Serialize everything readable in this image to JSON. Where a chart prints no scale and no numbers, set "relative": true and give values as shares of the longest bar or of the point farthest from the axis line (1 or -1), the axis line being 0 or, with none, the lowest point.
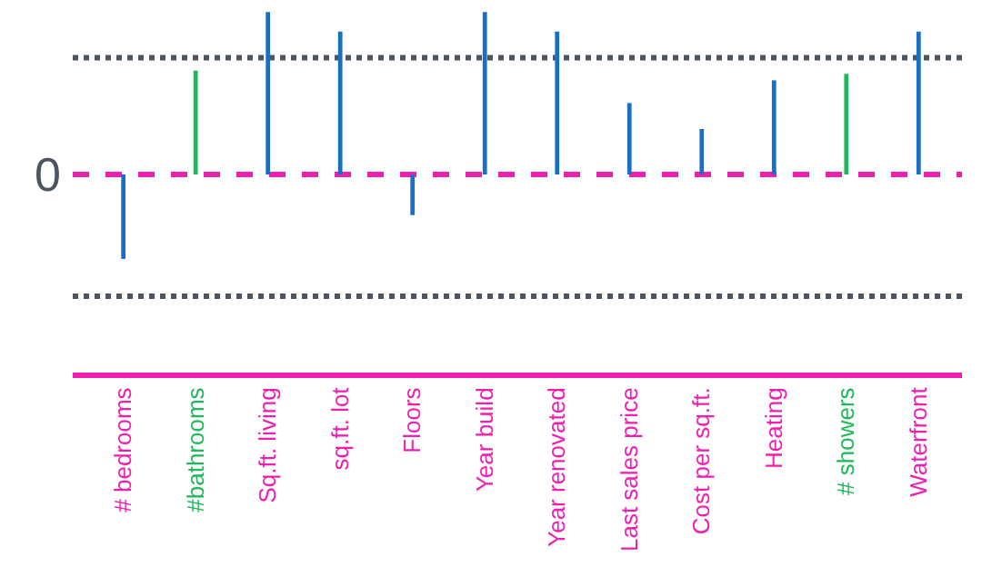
{
  "chart_data": {
    "type": "bar",
    "relative": true,
    "categories": [
      "# bedrooms",
      "#bathrooms",
      "Sq.ft. living",
      "sq.ft. lot",
      "Floors",
      "Year build",
      "Year renovated",
      "Last sales price",
      "Cost per sq.ft.",
      "Heating",
      "# showers",
      "Waterfront"
    ],
    "values": [
      -0.52,
      0.64,
      1,
      0.88,
      -0.25,
      1,
      0.88,
      0.44,
      0.28,
      0.58,
      0.62,
      0.88
    ],
    "colors": [
      "#1a6fc4",
      "#1fb85a",
      "#1a6fc4",
      "#1a6fc4",
      "#1a6fc4",
      "#1a6fc4",
      "#1a6fc4",
      "#1a6fc4",
      "#1a6fc4",
      "#1a6fc4",
      "#1fb85a",
      "#1a6fc4"
    ],
    "ref_lines": [
      {
        "axis": "y",
        "value": 0,
        "label": "0",
        "color": "#f01fb0",
        "line_style": "dashed"
      },
      {
        "axis": "y",
        "value": 0.72,
        "color": "#4d5560",
        "line_style": "dotted"
      },
      {
        "axis": "y",
        "value": -0.75,
        "color": "#4d5560",
        "line_style": "dotted"
      }
    ],
    "grid": false,
    "legend": false
  }
}
